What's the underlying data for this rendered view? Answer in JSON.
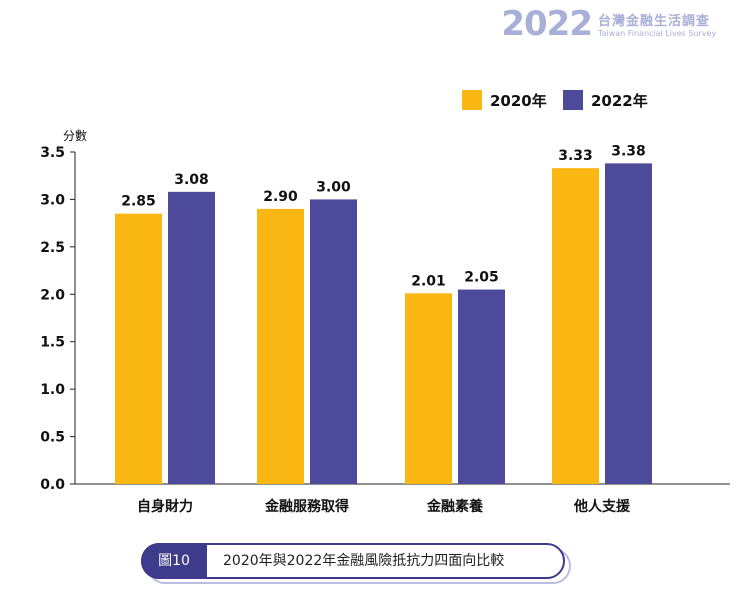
{
  "brand": {
    "year": "2022",
    "title_cn": "台灣金融生活調查",
    "title_en": "Taiwan Financial Lives Survey"
  },
  "caption": {
    "tag": "圖10",
    "text": "2020年與2022年金融風險抵抗力四面向比較"
  },
  "colors": {
    "series_2020": "#fbb713",
    "series_2022": "#4d4a9b",
    "axis": "#222222",
    "caption_dark": "#3f3b8c"
  },
  "chart_data": {
    "type": "bar",
    "title": "",
    "ylabel": "分數",
    "xlabel": "",
    "ylim": [
      0,
      3.5
    ],
    "yticks": [
      "0.0",
      "0.5",
      "1.0",
      "1.5",
      "2.0",
      "2.5",
      "3.0",
      "3.5"
    ],
    "categories": [
      "自身財力",
      "金融服務取得",
      "金融素養",
      "他人支援"
    ],
    "series": [
      {
        "name": "2020年",
        "values": [
          2.85,
          2.9,
          2.01,
          3.33
        ],
        "labels": [
          "2.85",
          "2.90",
          "2.01",
          "3.33"
        ]
      },
      {
        "name": "2022年",
        "values": [
          3.08,
          3.0,
          2.05,
          3.38
        ],
        "labels": [
          "3.08",
          "3.00",
          "2.05",
          "3.38"
        ]
      }
    ],
    "legend_position": "top-right",
    "grid": false
  }
}
